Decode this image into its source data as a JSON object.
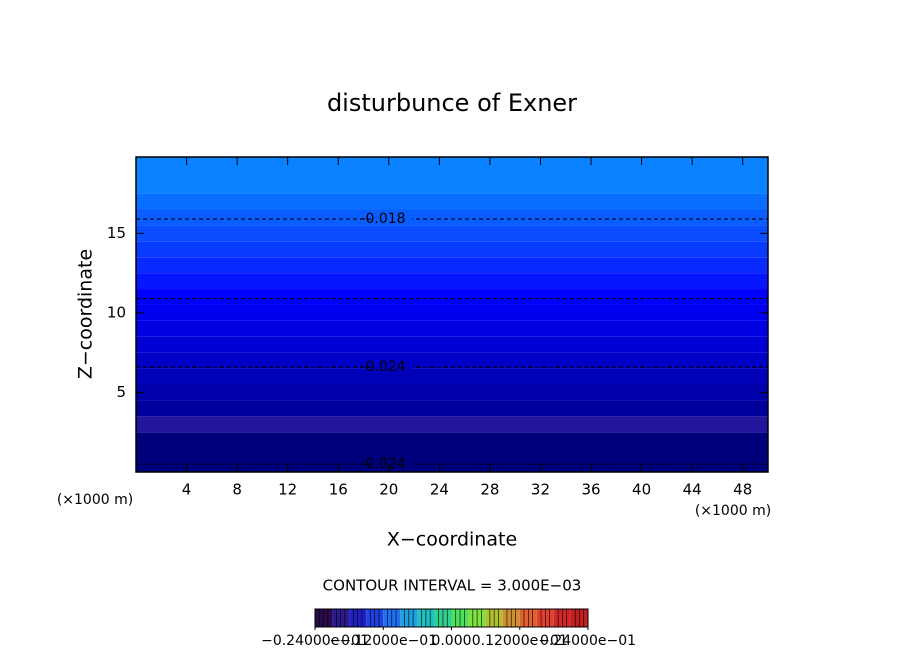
{
  "chart_data": {
    "type": "contour",
    "title": "disturbunce of Exner",
    "xlabel": "X−coordinate",
    "ylabel": "Z−coordinate",
    "x_unit_label": "(×1000 m)",
    "xlim": [
      0,
      50
    ],
    "xticks": [
      4,
      8,
      12,
      16,
      20,
      24,
      28,
      32,
      36,
      40,
      44,
      48
    ],
    "ylim": [
      0,
      19.8
    ],
    "yticks": [
      5,
      10,
      15
    ],
    "bands": {
      "z": [
        0,
        2.5,
        3.5,
        4.5,
        5.5,
        6.5,
        7.5,
        8.5,
        9.5,
        10.5,
        11.5,
        12.5,
        13.5,
        14.5,
        15.5,
        16.5,
        17.5,
        19.8
      ],
      "colors": [
        "#00007c",
        "#22169c",
        "#00009c",
        "#0000aa",
        "#0000b8",
        "#0000c6",
        "#0000d4",
        "#0000e2",
        "#0000f0",
        "#0000fe",
        "#0616ff",
        "#082aff",
        "#0a3cff",
        "#0a4eff",
        "#0a5eff",
        "#0a6eff",
        "#0a82ff"
      ]
    },
    "contours": [
      {
        "z": 15.9,
        "level": -0.018
      },
      {
        "z": 10.9,
        "level": null
      },
      {
        "z": 6.6,
        "level": -0.024
      },
      {
        "z": 0.5,
        "level": -0.024
      }
    ],
    "contour_note": "CONTOUR INTERVAL = 3.000E−03",
    "colorbar": {
      "lim": [
        -0.024,
        0.024
      ],
      "colors": [
        "#2a0a4a",
        "#2a1a8a",
        "#2020c0",
        "#2040e0",
        "#2070f0",
        "#20a0e0",
        "#20c0c0",
        "#30d090",
        "#50e060",
        "#80e040",
        "#b0c030",
        "#d09030",
        "#e06030",
        "#e04030",
        "#d02828",
        "#c02020"
      ],
      "ticks": [
        {
          "value": -0.024,
          "label": "−0.24000e−01"
        },
        {
          "value": -0.012,
          "label": "−0.12000e−01"
        },
        {
          "value": 0,
          "label": "0.000"
        },
        {
          "value": 0.012,
          "label": "0.12000e−01"
        },
        {
          "value": 0.024,
          "label": "0.24000e−01"
        }
      ]
    }
  }
}
